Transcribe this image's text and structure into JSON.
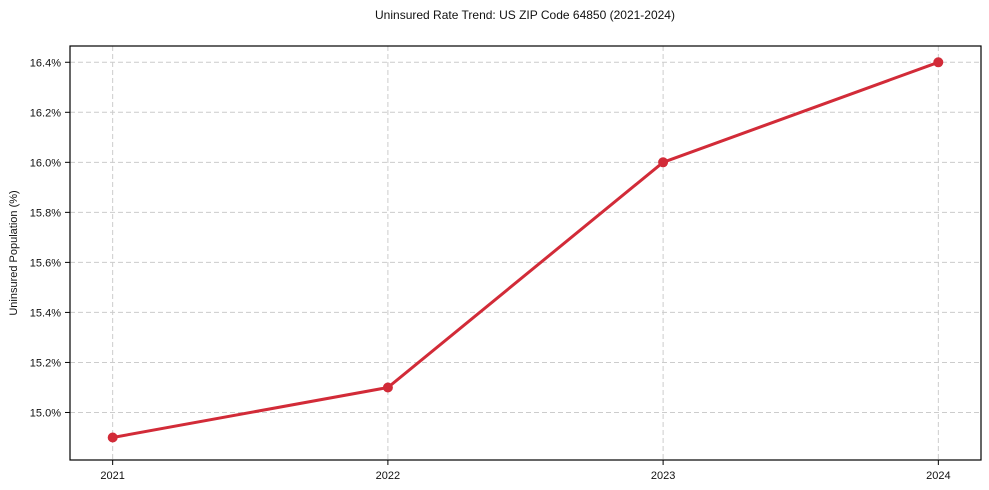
{
  "chart_data": {
    "type": "line",
    "title": "Uninsured Rate Trend: US ZIP Code 64850 (2021-2024)",
    "xlabel": "",
    "ylabel": "Uninsured Population (%)",
    "categories": [
      2021,
      2022,
      2023,
      2024
    ],
    "x_tick_labels": [
      "2021",
      "2022",
      "2023",
      "2024"
    ],
    "series": [
      {
        "name": "uninsured-rate",
        "values": [
          14.9,
          15.1,
          16.0,
          16.4
        ]
      }
    ],
    "y_ticks": [
      {
        "value": 15.0,
        "label": "15.0%"
      },
      {
        "value": 15.2,
        "label": "15.2%"
      },
      {
        "value": 15.4,
        "label": "15.4%"
      },
      {
        "value": 15.6,
        "label": "15.6%"
      },
      {
        "value": 15.8,
        "label": "15.8%"
      },
      {
        "value": 16.0,
        "label": "16.0%"
      },
      {
        "value": 16.2,
        "label": "16.2%"
      },
      {
        "value": 16.4,
        "label": "16.4%"
      }
    ],
    "ylim": [
      14.81,
      16.465
    ],
    "xlim": [
      2020.845,
      2024.155
    ],
    "grid": true,
    "legend": "none",
    "colors": {
      "line": "#d22b38",
      "marker": "#d22b38",
      "grid": "#cccccc",
      "frame": "#000000",
      "tick": "#000000",
      "text": "#111111",
      "background": "#ffffff"
    }
  }
}
